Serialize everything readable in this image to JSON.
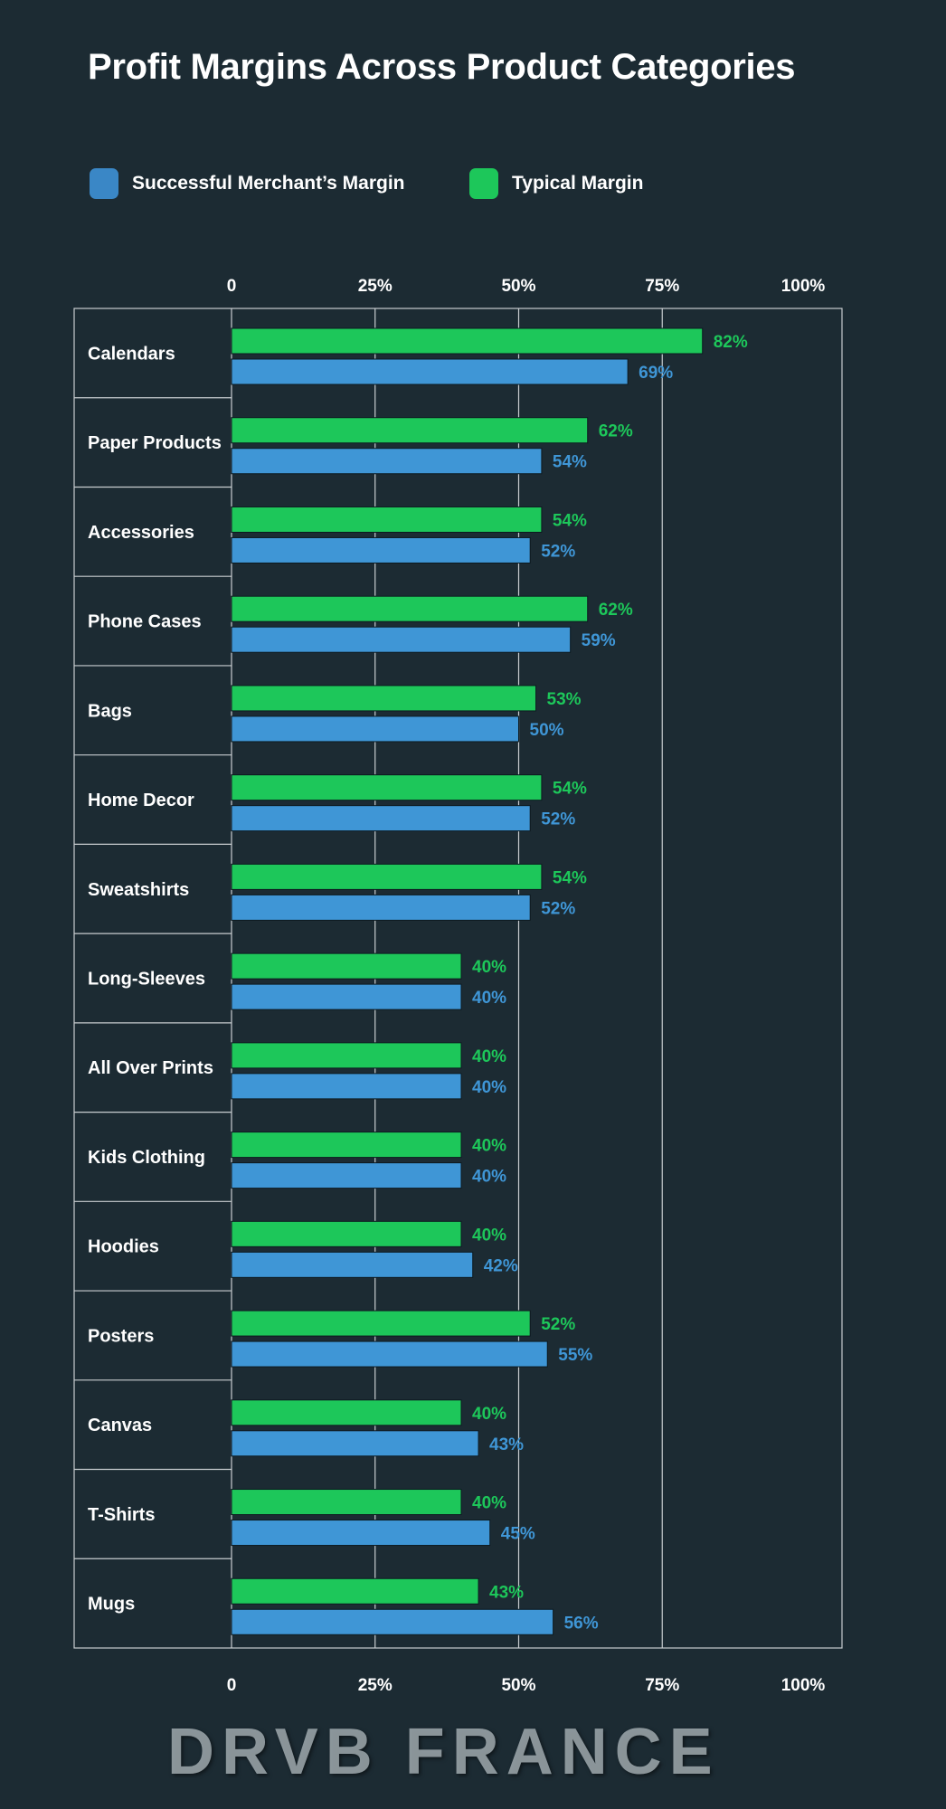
{
  "chart_data": {
    "type": "bar",
    "orientation": "horizontal",
    "title": "Profit Margins Across Product Categories",
    "categories": [
      "Calendars",
      "Paper Products",
      "Accessories",
      "Phone Cases",
      "Bags",
      "Home Decor",
      "Sweatshirts",
      "Long-Sleeves",
      "All Over Prints",
      "Kids Clothing",
      "Hoodies",
      "Posters",
      "Canvas",
      "T-Shirts",
      "Mugs"
    ],
    "series": [
      {
        "name": "Typical Margin",
        "color": "#1dc75a",
        "values": [
          82,
          62,
          54,
          62,
          53,
          54,
          54,
          40,
          40,
          40,
          40,
          52,
          40,
          40,
          43
        ]
      },
      {
        "name": "Successful Merchant’s Margin",
        "color": "#3f96d6",
        "values": [
          69,
          54,
          52,
          59,
          50,
          52,
          52,
          40,
          40,
          40,
          42,
          55,
          43,
          45,
          56
        ]
      }
    ],
    "xlim": [
      0,
      100
    ],
    "x_ticks": [
      "0",
      "25%",
      "50%",
      "75%",
      "100%"
    ],
    "legend_position": "top-left",
    "legend_order": [
      "Successful Merchant’s Margin",
      "Typical Margin"
    ],
    "grid": true,
    "background": "#1c2b33"
  },
  "watermark": "DRVB FRANCE"
}
